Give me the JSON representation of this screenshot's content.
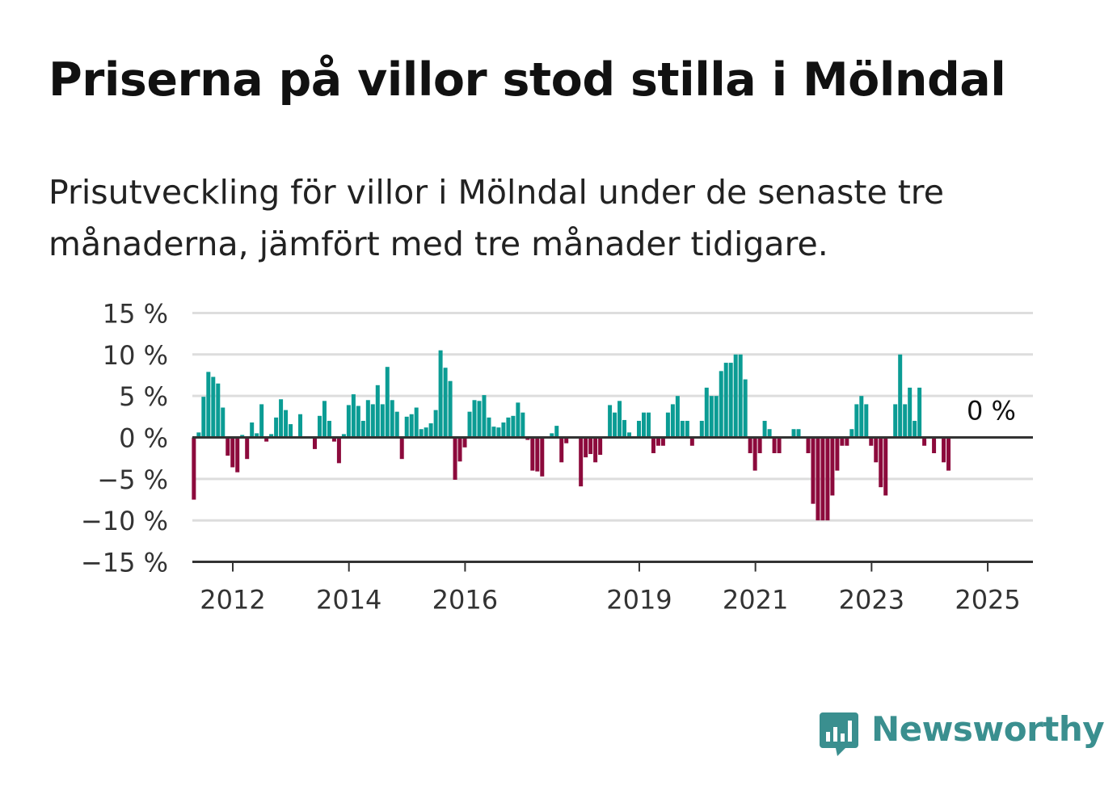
{
  "title": "Priserna på villor stod stilla i Mölndal",
  "subtitle": "Prisutveckling för villor i Mölndal under de senaste tre månaderna, jämfört med tre månader tidigare.",
  "brand": {
    "name": "Newsworthy",
    "icon": "newsworthy-logo-icon",
    "color": "#3a8f8f"
  },
  "colors": {
    "positive": "#0b9c94",
    "negative": "#8c0a3c",
    "grid": "#dddddd",
    "axis": "#333333"
  },
  "chart_data": {
    "type": "bar",
    "unit": "%",
    "ylim": [
      -15,
      15
    ],
    "y_ticks": [
      {
        "value": 15,
        "label": "15 %"
      },
      {
        "value": 10,
        "label": "10 %"
      },
      {
        "value": 5,
        "label": "5 %"
      },
      {
        "value": 0,
        "label": "0 %"
      },
      {
        "value": -5,
        "label": "−5 %"
      },
      {
        "value": -10,
        "label": "−10 %"
      },
      {
        "value": -15,
        "label": "−15 %"
      }
    ],
    "x_ticks": [
      {
        "value": 2012,
        "label": "2012"
      },
      {
        "value": 2014,
        "label": "2014"
      },
      {
        "value": 2016,
        "label": "2016"
      },
      {
        "value": 2019,
        "label": "2019"
      },
      {
        "value": 2021,
        "label": "2021"
      },
      {
        "value": 2023,
        "label": "2023"
      },
      {
        "value": 2025,
        "label": "2025"
      }
    ],
    "x_start": 2011.33,
    "x_step": 0.0833,
    "grid": true,
    "last_value_label": "0 %",
    "values": [
      -7.5,
      0.6,
      4.9,
      7.9,
      7.3,
      6.5,
      3.6,
      -2.2,
      -3.6,
      -4.2,
      0.3,
      -2.6,
      1.8,
      0.5,
      4.0,
      -0.5,
      0.4,
      2.4,
      4.6,
      3.3,
      1.6,
      0.0,
      2.8,
      0.0,
      0.0,
      -1.4,
      2.6,
      4.4,
      2.0,
      -0.5,
      -3.1,
      0.4,
      3.9,
      5.2,
      3.8,
      2.0,
      4.5,
      4.0,
      6.3,
      4.0,
      8.5,
      4.5,
      3.1,
      -2.6,
      2.5,
      2.8,
      3.6,
      1.0,
      1.2,
      1.7,
      3.3,
      10.5,
      8.4,
      6.8,
      -5.1,
      -2.9,
      -1.2,
      3.1,
      4.5,
      4.4,
      5.1,
      2.4,
      1.3,
      1.2,
      1.8,
      2.4,
      2.6,
      4.2,
      3.0,
      -0.3,
      -4.0,
      -4.1,
      -4.7,
      0.0,
      0.5,
      1.4,
      -3.0,
      -0.7,
      0.0,
      0.0,
      -5.9,
      -2.4,
      -2.0,
      -3.0,
      -2.1,
      0.0,
      3.9,
      3.0,
      4.4,
      2.1,
      0.6,
      0.0,
      2.0,
      3.0,
      3.0,
      -1.9,
      -1.0,
      -1.0,
      3.0,
      4.0,
      5.0,
      2.0,
      2.0,
      -1.0,
      0.0,
      2.0,
      6.0,
      5.0,
      5.0,
      8.0,
      9.0,
      9.0,
      10.0,
      10.0,
      7.0,
      -1.9,
      -4.0,
      -1.9,
      2.0,
      1.0,
      -1.9,
      -1.9,
      0.0,
      0.0,
      1.0,
      1.0,
      0.0,
      -1.9,
      -8.0,
      -10.0,
      -10.0,
      -10.0,
      -7.0,
      -4.0,
      -1.0,
      -1.0,
      1.0,
      4.0,
      5.0,
      4.0,
      -1.0,
      -3.0,
      -6.0,
      -7.0,
      0.0,
      4.0,
      10.0,
      4.0,
      6.0,
      2.0,
      6.0,
      -1.0,
      0.0,
      -1.9,
      0.0,
      -3.0,
      -4.0,
      0.0
    ]
  }
}
